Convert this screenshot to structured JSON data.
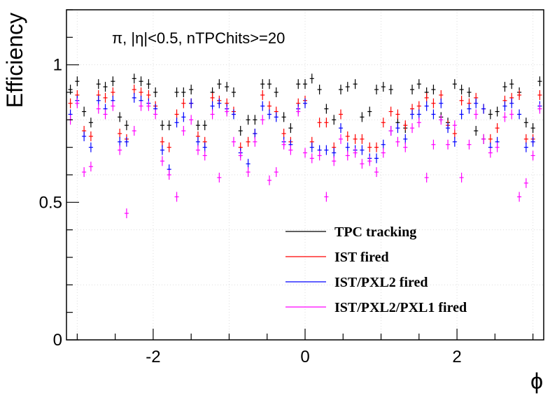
{
  "chart_data": {
    "type": "scatter",
    "title": "",
    "annotation": "π, |η|<0.5, nTPChits>=20",
    "xlabel": "ϕ",
    "ylabel": "Efficiency",
    "xlim": [
      -3.1416,
      3.1416
    ],
    "ylim": [
      0,
      1.2
    ],
    "x_ticks": [
      -2,
      0,
      2
    ],
    "x_tick_labels": [
      "-2",
      "0",
      "2"
    ],
    "y_ticks": [
      0,
      0.5,
      1
    ],
    "y_tick_labels": [
      "0",
      "0.5",
      "1"
    ],
    "grid": true,
    "legend_position": "bottom-right",
    "x": [
      -3.09,
      -3.0,
      -2.91,
      -2.82,
      -2.72,
      -2.63,
      -2.53,
      -2.44,
      -2.35,
      -2.25,
      -2.16,
      -2.06,
      -1.97,
      -1.88,
      -1.79,
      -1.69,
      -1.6,
      -1.5,
      -1.41,
      -1.32,
      -1.22,
      -1.13,
      -1.03,
      -0.94,
      -0.85,
      -0.75,
      -0.66,
      -0.56,
      -0.47,
      -0.38,
      -0.28,
      -0.19,
      -0.09,
      0.0,
      0.09,
      0.19,
      0.28,
      0.38,
      0.47,
      0.56,
      0.66,
      0.75,
      0.85,
      0.94,
      1.03,
      1.13,
      1.22,
      1.32,
      1.41,
      1.5,
      1.6,
      1.69,
      1.79,
      1.88,
      1.97,
      2.06,
      2.16,
      2.25,
      2.35,
      2.44,
      2.53,
      2.63,
      2.72,
      2.82,
      2.91,
      3.0,
      3.09
    ],
    "series": [
      {
        "name": "TPC tracking",
        "color": "#000000",
        "values": [
          0.91,
          0.94,
          0.83,
          0.79,
          0.93,
          0.92,
          0.94,
          0.81,
          0.78,
          0.95,
          0.94,
          0.93,
          0.9,
          0.78,
          0.78,
          0.9,
          0.9,
          0.91,
          0.78,
          0.78,
          0.9,
          0.93,
          0.92,
          0.9,
          0.76,
          0.8,
          0.8,
          0.93,
          0.93,
          0.9,
          0.81,
          0.77,
          0.93,
          0.93,
          0.95,
          0.91,
          0.84,
          0.8,
          0.91,
          0.92,
          0.93,
          0.81,
          0.83,
          0.91,
          0.92,
          0.91,
          0.79,
          0.77,
          0.91,
          0.93,
          0.9,
          0.91,
          0.81,
          0.79,
          0.93,
          0.91,
          0.9,
          0.76,
          0.73,
          0.82,
          0.83,
          0.92,
          0.93,
          0.9,
          0.79,
          0.77,
          0.94
        ]
      },
      {
        "name": "IST fired",
        "color": "#ff0000",
        "values": [
          0.86,
          0.89,
          0.76,
          0.74,
          0.89,
          0.88,
          0.9,
          0.75,
          0.73,
          0.91,
          0.9,
          0.89,
          0.85,
          0.72,
          0.7,
          0.82,
          0.86,
          0.86,
          0.74,
          0.72,
          0.88,
          0.87,
          0.86,
          0.83,
          0.7,
          0.72,
          0.75,
          0.89,
          0.85,
          0.83,
          0.75,
          0.72,
          0.86,
          0.87,
          0.72,
          0.79,
          0.79,
          0.7,
          0.82,
          0.74,
          0.73,
          0.73,
          0.7,
          0.7,
          0.79,
          0.83,
          0.82,
          0.78,
          0.84,
          0.85,
          0.88,
          0.86,
          0.89,
          0.78,
          0.75,
          0.87,
          0.86,
          0.88,
          0.84,
          0.73,
          0.77,
          0.87,
          0.88,
          0.89,
          0.73,
          0.73,
          0.89
        ]
      },
      {
        "name": "IST/PXL2 fired",
        "color": "#0000ff",
        "values": [
          0.82,
          0.87,
          0.74,
          0.7,
          0.87,
          0.84,
          0.87,
          0.72,
          0.72,
          0.88,
          0.87,
          0.86,
          0.84,
          0.69,
          0.62,
          0.79,
          0.81,
          0.86,
          0.72,
          0.7,
          0.85,
          0.86,
          0.84,
          0.82,
          0.68,
          0.64,
          0.75,
          0.85,
          0.82,
          0.81,
          0.72,
          0.71,
          0.84,
          0.86,
          0.7,
          0.69,
          0.69,
          0.68,
          0.77,
          0.7,
          0.69,
          0.69,
          0.66,
          0.66,
          0.71,
          0.76,
          0.77,
          0.73,
          0.82,
          0.82,
          0.85,
          0.82,
          0.86,
          0.77,
          0.72,
          0.82,
          0.84,
          0.86,
          0.84,
          0.7,
          0.72,
          0.85,
          0.86,
          0.82,
          0.7,
          0.72,
          0.85
        ]
      },
      {
        "name": "IST/PXL2/PXL1 fired",
        "color": "#ff00ff",
        "values": [
          0.8,
          0.86,
          0.61,
          0.63,
          0.84,
          0.82,
          0.85,
          0.69,
          0.46,
          0.76,
          0.85,
          0.85,
          0.82,
          0.65,
          0.6,
          0.52,
          0.76,
          0.8,
          0.69,
          0.67,
          0.82,
          0.59,
          0.83,
          0.72,
          0.67,
          0.61,
          0.72,
          0.8,
          0.58,
          0.61,
          0.71,
          0.69,
          0.83,
          0.68,
          0.66,
          0.67,
          0.52,
          0.65,
          0.73,
          0.67,
          0.68,
          0.64,
          0.65,
          0.61,
          0.68,
          0.76,
          0.72,
          0.7,
          0.77,
          0.79,
          0.59,
          0.71,
          0.8,
          0.71,
          0.78,
          0.59,
          0.71,
          0.82,
          0.73,
          0.68,
          0.7,
          0.81,
          0.82,
          0.52,
          0.57,
          0.67,
          0.84
        ]
      }
    ]
  }
}
